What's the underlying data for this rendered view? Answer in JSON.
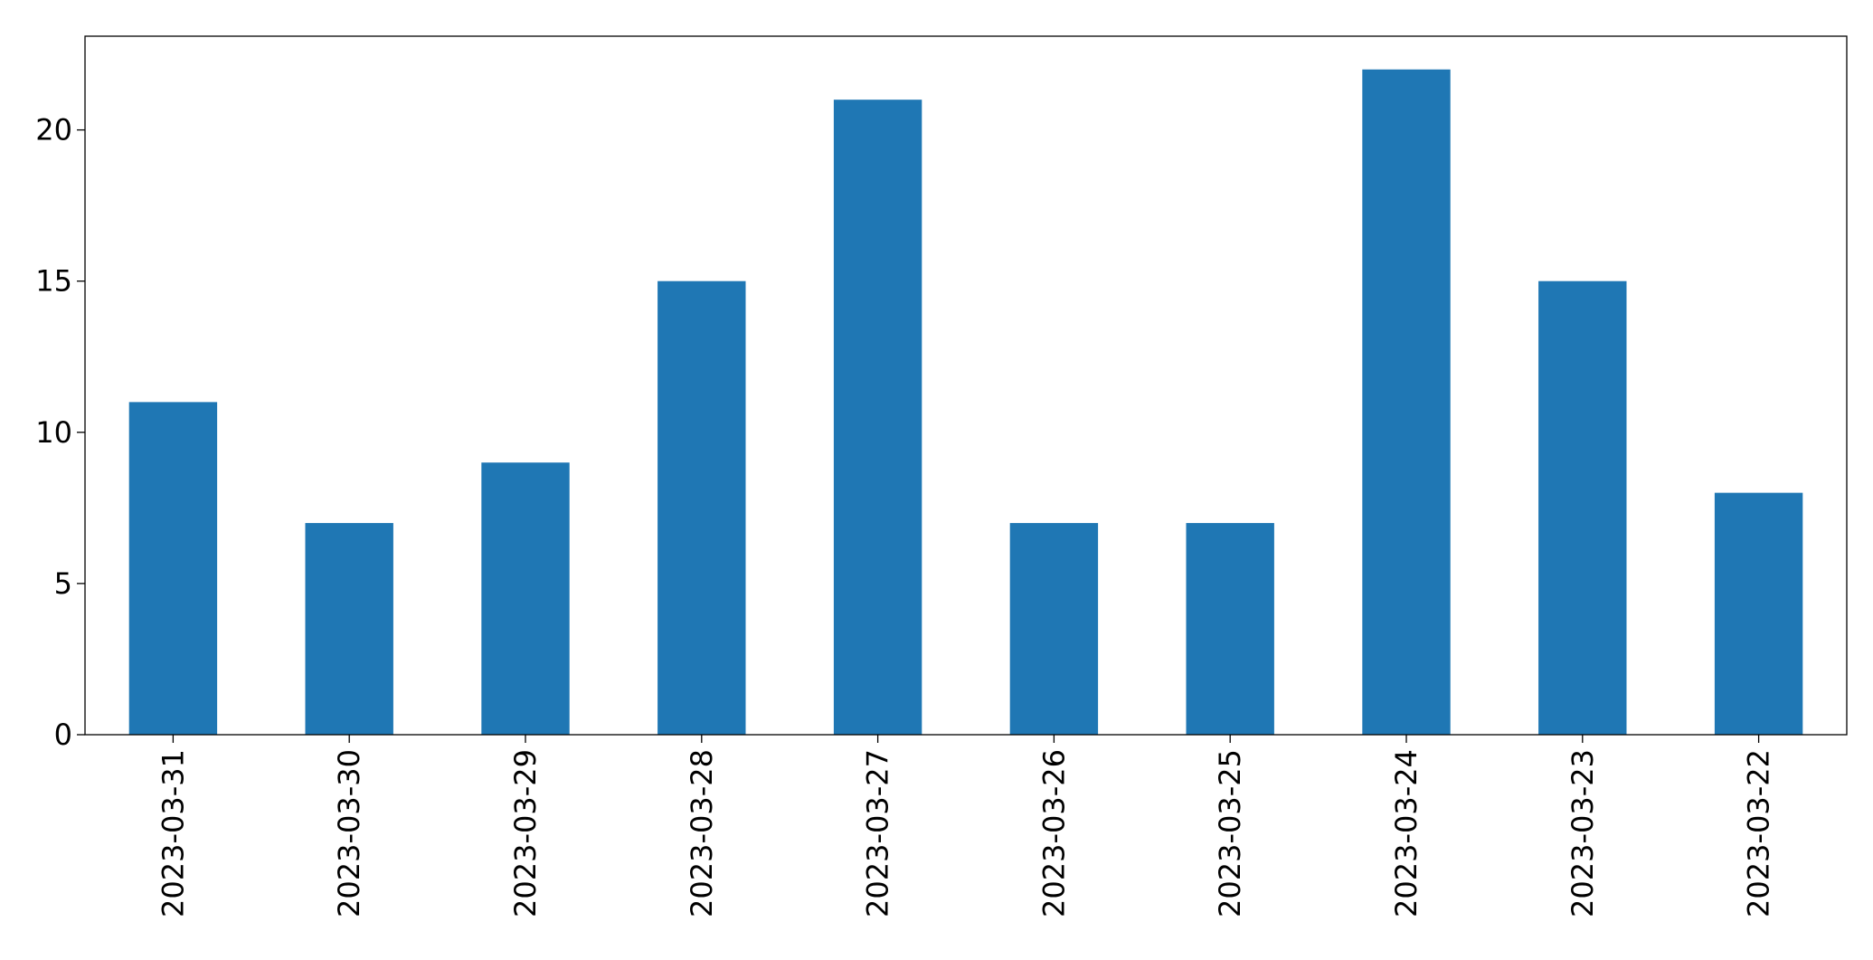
{
  "chart_data": {
    "type": "bar",
    "categories": [
      "2023-03-31",
      "2023-03-30",
      "2023-03-29",
      "2023-03-28",
      "2023-03-27",
      "2023-03-26",
      "2023-03-25",
      "2023-03-24",
      "2023-03-23",
      "2023-03-22"
    ],
    "values": [
      11,
      7,
      9,
      15,
      21,
      7,
      7,
      22,
      15,
      8
    ],
    "color": "#1f77b4",
    "ylim": [
      0,
      23.1
    ],
    "yticks": [
      0,
      5,
      10,
      15,
      20
    ],
    "grid": false
  }
}
